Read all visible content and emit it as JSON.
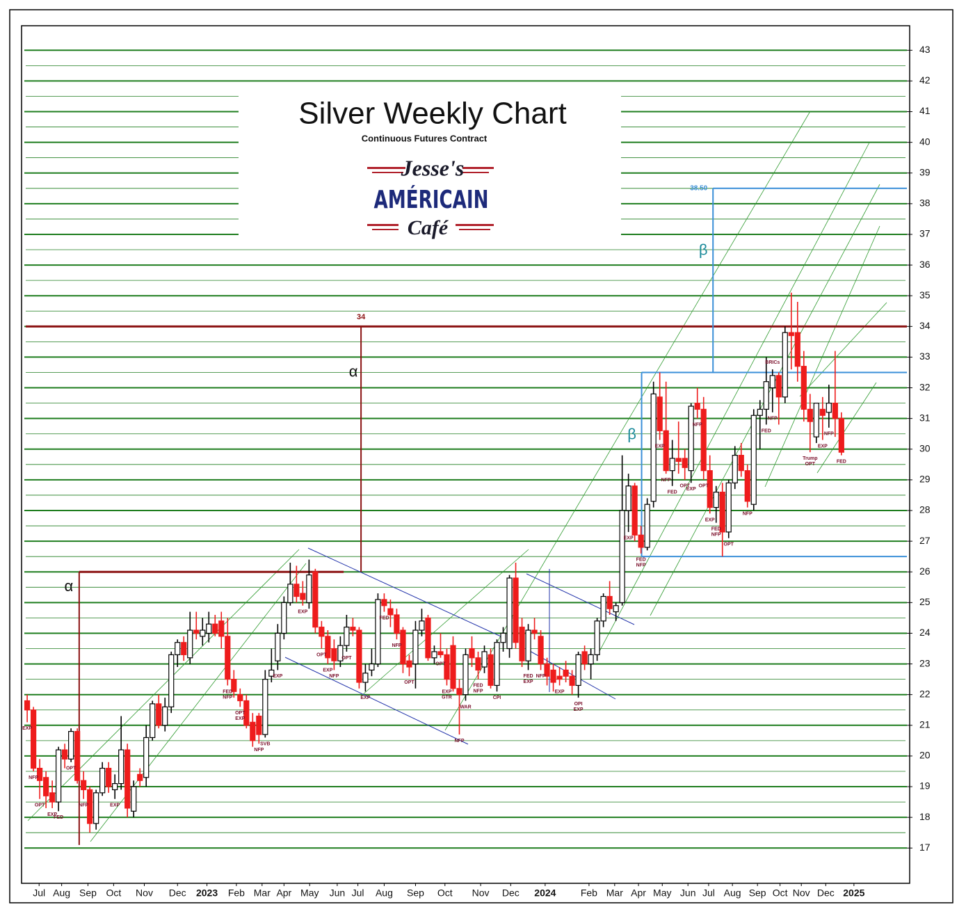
{
  "chart_data": {
    "type": "candlestick",
    "title": "Silver Weekly Chart",
    "subtitle": "Continuous Futures Contract",
    "logo": {
      "line1": "Jesse's",
      "line2": "AMÉRICAIN",
      "line3": "Café"
    },
    "up_color": "#ffffff",
    "down_color": "#ee1c1c",
    "grid_color": "#1e7d1e",
    "grid": true,
    "minor_grid": true,
    "ylim": [
      15.85,
      43.8
    ],
    "yticks": [
      17,
      18,
      19,
      20,
      21,
      22,
      23,
      24,
      25,
      26,
      27,
      28,
      29,
      30,
      31,
      32,
      33,
      34,
      35,
      36,
      37,
      38,
      39,
      40,
      41,
      42,
      43
    ],
    "xlim": [
      -0.9,
      140.9
    ],
    "xticks": [
      {
        "value": 1.9,
        "label": "Jul"
      },
      {
        "value": 5.5,
        "label": "Aug"
      },
      {
        "value": 9.7,
        "label": "Sep"
      },
      {
        "value": 13.8,
        "label": "Oct"
      },
      {
        "value": 18.7,
        "label": "Nov"
      },
      {
        "value": 24,
        "label": "Dec"
      },
      {
        "value": 28.7,
        "label": "2023"
      },
      {
        "value": 33.4,
        "label": "Feb"
      },
      {
        "value": 37.5,
        "label": "Mar"
      },
      {
        "value": 41,
        "label": "Apr"
      },
      {
        "value": 45.1,
        "label": "May"
      },
      {
        "value": 49.5,
        "label": "Jun"
      },
      {
        "value": 52.8,
        "label": "Jul"
      },
      {
        "value": 57,
        "label": "Aug"
      },
      {
        "value": 62,
        "label": "Sep"
      },
      {
        "value": 66.7,
        "label": "Oct"
      },
      {
        "value": 72.4,
        "label": "Nov"
      },
      {
        "value": 77.2,
        "label": "Dec"
      },
      {
        "value": 82.7,
        "label": "2024"
      },
      {
        "value": 89.7,
        "label": "Feb"
      },
      {
        "value": 93.8,
        "label": "Mar"
      },
      {
        "value": 97.6,
        "label": "Apr"
      },
      {
        "value": 101.4,
        "label": "May"
      },
      {
        "value": 105.5,
        "label": "Jun"
      },
      {
        "value": 108.8,
        "label": "Jul"
      },
      {
        "value": 112.6,
        "label": "Aug"
      },
      {
        "value": 116.6,
        "label": "Sep"
      },
      {
        "value": 120.2,
        "label": "Oct"
      },
      {
        "value": 123.6,
        "label": "Nov"
      },
      {
        "value": 127.5,
        "label": "Dec"
      },
      {
        "value": 132,
        "label": "2025"
      }
    ],
    "ohlc": [
      [
        21.8,
        22.0,
        21.1,
        21.5
      ],
      [
        21.5,
        21.6,
        19.5,
        19.6
      ],
      [
        19.6,
        19.9,
        18.6,
        19.2
      ],
      [
        19.3,
        19.5,
        18.3,
        18.7
      ],
      [
        18.8,
        19.2,
        18.3,
        18.5
      ],
      [
        18.5,
        20.3,
        18.2,
        20.2
      ],
      [
        20.2,
        20.4,
        19.6,
        19.9
      ],
      [
        19.9,
        20.9,
        19.8,
        20.8
      ],
      [
        20.8,
        20.9,
        19.1,
        19.2
      ],
      [
        19.2,
        19.5,
        18.6,
        18.9
      ],
      [
        18.9,
        19.0,
        17.5,
        17.8
      ],
      [
        17.8,
        18.9,
        17.6,
        18.8
      ],
      [
        18.8,
        19.8,
        18.7,
        19.6
      ],
      [
        19.6,
        19.8,
        18.8,
        19.0
      ],
      [
        18.9,
        19.4,
        18.6,
        19.1
      ],
      [
        19.1,
        21.3,
        18.9,
        20.2
      ],
      [
        20.2,
        20.4,
        18.0,
        18.3
      ],
      [
        18.2,
        19.2,
        18.0,
        19.0
      ],
      [
        19.4,
        19.6,
        19.0,
        19.2
      ],
      [
        19.3,
        21.0,
        19.0,
        20.6
      ],
      [
        20.6,
        21.8,
        20.5,
        21.7
      ],
      [
        21.7,
        22.0,
        20.9,
        21.0
      ],
      [
        21.0,
        21.9,
        20.8,
        21.6
      ],
      [
        21.6,
        23.4,
        21.4,
        23.3
      ],
      [
        23.3,
        23.8,
        22.9,
        23.7
      ],
      [
        23.7,
        23.9,
        23.1,
        23.3
      ],
      [
        23.2,
        24.7,
        23.0,
        24.1
      ],
      [
        24.1,
        24.7,
        23.8,
        24.0
      ],
      [
        23.9,
        24.5,
        23.6,
        24.1
      ],
      [
        24.0,
        24.7,
        23.7,
        24.3
      ],
      [
        24.3,
        24.6,
        23.9,
        24.0
      ],
      [
        24.4,
        24.7,
        23.5,
        23.9
      ],
      [
        23.9,
        24.5,
        22.3,
        22.5
      ],
      [
        22.5,
        22.8,
        21.9,
        22.1
      ],
      [
        22.0,
        22.2,
        21.6,
        21.8
      ],
      [
        21.8,
        22.0,
        20.9,
        21.0
      ],
      [
        21.1,
        21.4,
        20.3,
        20.5
      ],
      [
        21.3,
        21.4,
        20.4,
        20.7
      ],
      [
        20.7,
        22.8,
        20.6,
        22.5
      ],
      [
        22.6,
        23.5,
        22.4,
        22.8
      ],
      [
        23.1,
        24.3,
        22.8,
        24.0
      ],
      [
        24.0,
        25.2,
        23.8,
        25.0
      ],
      [
        25.0,
        26.3,
        24.9,
        25.6
      ],
      [
        25.6,
        26.2,
        25.0,
        25.2
      ],
      [
        25.3,
        25.7,
        24.9,
        25.1
      ],
      [
        25.0,
        26.4,
        24.8,
        25.9
      ],
      [
        26.0,
        26.1,
        24.0,
        24.2
      ],
      [
        24.2,
        24.4,
        23.5,
        23.9
      ],
      [
        23.9,
        24.1,
        23.0,
        23.2
      ],
      [
        23.5,
        23.8,
        22.8,
        23.1
      ],
      [
        23.1,
        23.9,
        22.9,
        23.6
      ],
      [
        23.6,
        24.6,
        23.4,
        24.2
      ],
      [
        24.2,
        24.5,
        23.9,
        24.1
      ],
      [
        24.1,
        24.2,
        22.2,
        22.4
      ],
      [
        22.4,
        23.0,
        22.1,
        22.7
      ],
      [
        22.8,
        23.5,
        22.6,
        23.0
      ],
      [
        23.0,
        25.3,
        22.9,
        25.1
      ],
      [
        25.1,
        25.3,
        24.7,
        24.9
      ],
      [
        24.8,
        25.1,
        24.2,
        24.6
      ],
      [
        24.6,
        24.8,
        23.8,
        24.0
      ],
      [
        24.1,
        24.2,
        22.7,
        23.0
      ],
      [
        23.1,
        23.3,
        22.6,
        22.9
      ],
      [
        23.0,
        24.4,
        22.2,
        24.1
      ],
      [
        24.1,
        24.8,
        23.9,
        24.4
      ],
      [
        24.5,
        24.6,
        23.1,
        23.2
      ],
      [
        23.2,
        23.6,
        23.0,
        23.4
      ],
      [
        23.4,
        24.0,
        23.2,
        23.3
      ],
      [
        23.3,
        23.5,
        22.3,
        22.5
      ],
      [
        23.6,
        23.9,
        22.1,
        22.2
      ],
      [
        22.2,
        22.5,
        20.7,
        22.0
      ],
      [
        22.0,
        23.5,
        21.8,
        23.3
      ],
      [
        23.5,
        23.9,
        22.9,
        23.2
      ],
      [
        23.2,
        23.4,
        22.5,
        22.8
      ],
      [
        22.9,
        23.6,
        22.7,
        23.4
      ],
      [
        23.3,
        23.5,
        22.2,
        22.3
      ],
      [
        22.3,
        23.8,
        22.1,
        23.7
      ],
      [
        23.7,
        24.2,
        23.4,
        24.0
      ],
      [
        23.5,
        25.9,
        23.2,
        25.8
      ],
      [
        25.8,
        26.3,
        23.5,
        23.7
      ],
      [
        24.2,
        24.5,
        22.9,
        23.1
      ],
      [
        23.1,
        24.3,
        22.8,
        24.1
      ],
      [
        24.1,
        24.5,
        23.8,
        24.0
      ],
      [
        23.9,
        24.1,
        22.8,
        23.0
      ],
      [
        23.0,
        23.2,
        22.3,
        22.6
      ],
      [
        22.8,
        23.0,
        22.1,
        22.4
      ],
      [
        22.6,
        22.9,
        22.3,
        22.5
      ],
      [
        22.8,
        23.1,
        22.4,
        22.6
      ],
      [
        22.6,
        22.8,
        22.0,
        22.3
      ],
      [
        22.3,
        23.4,
        21.9,
        23.3
      ],
      [
        23.4,
        23.6,
        22.8,
        23.0
      ],
      [
        23.0,
        23.5,
        22.5,
        23.3
      ],
      [
        23.3,
        24.5,
        23.1,
        24.4
      ],
      [
        24.4,
        25.3,
        24.2,
        25.2
      ],
      [
        25.2,
        25.7,
        24.6,
        24.8
      ],
      [
        24.7,
        25.0,
        24.4,
        24.9
      ],
      [
        25.0,
        29.8,
        24.9,
        28.0
      ],
      [
        28.0,
        29.2,
        27.3,
        28.8
      ],
      [
        28.8,
        28.9,
        27.0,
        27.2
      ],
      [
        27.2,
        27.5,
        26.6,
        26.8
      ],
      [
        26.8,
        28.4,
        26.7,
        28.2
      ],
      [
        28.3,
        32.2,
        28.1,
        31.8
      ],
      [
        31.7,
        32.5,
        30.3,
        30.6
      ],
      [
        30.6,
        32.2,
        29.2,
        29.3
      ],
      [
        29.3,
        30.3,
        28.8,
        29.7
      ],
      [
        29.7,
        30.9,
        29.2,
        29.6
      ],
      [
        29.7,
        30.0,
        29.0,
        29.4
      ],
      [
        29.3,
        31.5,
        28.9,
        31.4
      ],
      [
        31.5,
        32.0,
        31.0,
        31.3
      ],
      [
        31.3,
        31.7,
        29.0,
        29.3
      ],
      [
        29.3,
        29.8,
        27.9,
        28.1
      ],
      [
        28.1,
        28.8,
        27.6,
        28.6
      ],
      [
        28.6,
        28.9,
        26.5,
        27.3
      ],
      [
        27.3,
        29.0,
        27.1,
        28.9
      ],
      [
        28.9,
        30.1,
        28.7,
        29.8
      ],
      [
        29.8,
        30.2,
        29.1,
        29.3
      ],
      [
        29.3,
        29.5,
        28.1,
        28.3
      ],
      [
        28.2,
        31.3,
        28.0,
        31.1
      ],
      [
        31.1,
        31.6,
        30.0,
        31.3
      ],
      [
        31.3,
        33.0,
        30.8,
        32.2
      ],
      [
        32.0,
        32.6,
        31.2,
        32.4
      ],
      [
        32.4,
        32.5,
        30.8,
        31.7
      ],
      [
        31.7,
        34.0,
        31.5,
        33.8
      ],
      [
        33.8,
        35.1,
        32.6,
        33.7
      ],
      [
        33.8,
        34.8,
        32.2,
        32.7
      ],
      [
        32.7,
        33.2,
        30.9,
        31.3
      ],
      [
        31.3,
        31.8,
        29.9,
        30.9
      ],
      [
        30.4,
        31.5,
        30.2,
        31.5
      ],
      [
        31.3,
        31.7,
        30.3,
        31.1
      ],
      [
        31.2,
        32.1,
        30.7,
        31.5
      ],
      [
        31.5,
        33.2,
        30.4,
        31.0
      ],
      [
        31.0,
        31.2,
        29.8,
        29.9
      ]
    ],
    "events": [
      {
        "text": "EXP",
        "index": 0
      },
      {
        "text": "NFP",
        "index": 1
      },
      {
        "text": "OPT",
        "index": 2
      },
      {
        "text": "EXP",
        "index": 4
      },
      {
        "text": "FED",
        "index": 5
      },
      {
        "text": "OPT",
        "index": 7
      },
      {
        "text": "NFP",
        "index": 9
      },
      {
        "text": "EXP",
        "index": 14
      },
      {
        "text": "FED",
        "index": 32
      },
      {
        "text": "NFP",
        "index": 32
      },
      {
        "text": "OPT",
        "index": 34
      },
      {
        "text": "EXP",
        "index": 34
      },
      {
        "text": "NFP",
        "index": 37
      },
      {
        "text": "SVB",
        "index": 38
      },
      {
        "text": "EXP",
        "index": 40
      },
      {
        "text": "EXP",
        "index": 44
      },
      {
        "text": "OPT",
        "index": 47
      },
      {
        "text": "EXP",
        "index": 48
      },
      {
        "text": "NFP",
        "index": 49
      },
      {
        "text": "OPT",
        "index": 51
      },
      {
        "text": "EXP",
        "index": 54
      },
      {
        "text": "FED",
        "index": 57
      },
      {
        "text": "NFP",
        "index": 59
      },
      {
        "text": "OPT",
        "index": 61
      },
      {
        "text": "OPT",
        "index": 66
      },
      {
        "text": "EXP",
        "index": 67
      },
      {
        "text": "GTR",
        "index": 67
      },
      {
        "text": "NFP",
        "index": 69
      },
      {
        "text": "WAR",
        "index": 70
      },
      {
        "text": "FED",
        "index": 72
      },
      {
        "text": "NFP",
        "index": 72
      },
      {
        "text": "CPI",
        "index": 75
      },
      {
        "text": "FED",
        "index": 80
      },
      {
        "text": "EXP",
        "index": 80
      },
      {
        "text": "NFP",
        "index": 82
      },
      {
        "text": "EXP",
        "index": 85
      },
      {
        "text": "OPI",
        "index": 88
      },
      {
        "text": "EXP",
        "index": 88
      },
      {
        "text": "EXP",
        "index": 96
      },
      {
        "text": "FED",
        "index": 98
      },
      {
        "text": "NFP",
        "index": 98
      },
      {
        "text": "EXP",
        "index": 101
      },
      {
        "text": "NFP",
        "index": 102
      },
      {
        "text": "FED",
        "index": 103
      },
      {
        "text": "OPT",
        "index": 105
      },
      {
        "text": "EXP",
        "index": 106
      },
      {
        "text": "NFP",
        "index": 107
      },
      {
        "text": "OPT",
        "index": 108
      },
      {
        "text": "EXP",
        "index": 109
      },
      {
        "text": "FED",
        "index": 110
      },
      {
        "text": "NFP",
        "index": 110
      },
      {
        "text": "OPT",
        "index": 112
      },
      {
        "text": "NFP",
        "index": 115
      },
      {
        "text": "FED",
        "index": 118
      },
      {
        "text": "NFP",
        "index": 119
      },
      {
        "text": "BRICs",
        "index": 119,
        "above": true
      },
      {
        "text": "Trump",
        "index": 125
      },
      {
        "text": "OPT",
        "index": 125
      },
      {
        "text": "EXP",
        "index": 127
      },
      {
        "text": "NFP",
        "index": 128
      },
      {
        "text": "FED",
        "index": 130
      }
    ],
    "alpha": {
      "symbol": "α",
      "base": 26,
      "target": 34,
      "color": "#8b1212"
    },
    "beta": {
      "symbol": "β",
      "low": 26.5,
      "base": 32.5,
      "target": {
        "value": 38.5,
        "label": "38.50"
      },
      "color": "#3a8fd8",
      "symbol_color": "#1a8a9a"
    }
  }
}
